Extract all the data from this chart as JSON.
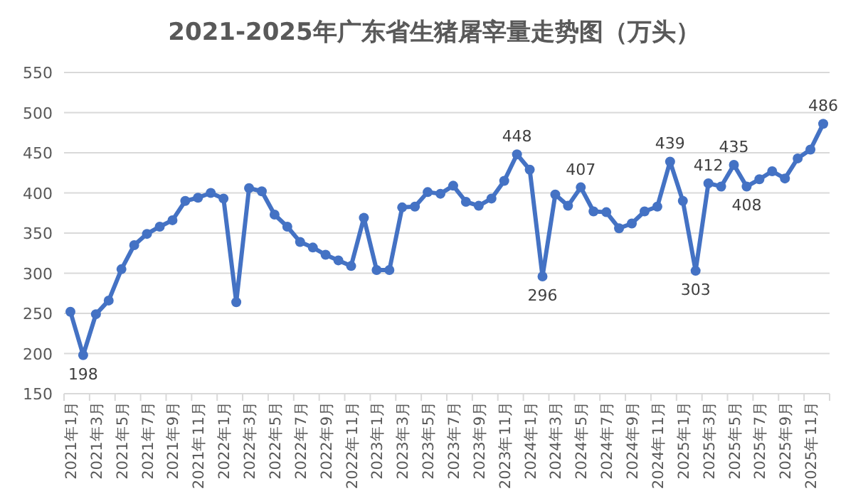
{
  "chart_data": {
    "type": "line",
    "title": "2021-2025年广东省生猪屠宰量走势图（万头）",
    "categories": [
      "2021年1月",
      null,
      "2021年3月",
      null,
      "2021年5月",
      null,
      "2021年7月",
      null,
      "2021年9月",
      null,
      "2021年11月",
      null,
      "2022年1月",
      null,
      "2022年3月",
      null,
      "2022年5月",
      null,
      "2022年7月",
      null,
      "2022年9月",
      null,
      "2022年11月",
      null,
      "2023年1月",
      null,
      "2023年3月",
      null,
      "2023年5月",
      null,
      "2023年7月",
      null,
      "2023年9月",
      null,
      "2023年11月",
      null,
      "2024年1月",
      null,
      "2024年3月",
      null,
      "2024年5月",
      null,
      "2024年7月",
      null,
      "2024年9月",
      null,
      "2024年11月",
      null,
      "2025年1月",
      null,
      "2025年3月",
      null,
      "2025年5月",
      null,
      "2025年7月",
      null,
      "2025年9月",
      null,
      "2025年11月",
      null
    ],
    "series": [
      {
        "color": "#4472c4",
        "values": [
          252,
          198,
          249,
          266,
          305,
          335,
          349,
          358,
          366,
          390,
          394,
          400,
          393,
          264,
          406,
          402,
          373,
          358,
          339,
          332,
          323,
          316,
          309,
          369,
          304,
          304,
          382,
          383,
          401,
          399,
          409,
          389,
          384,
          393,
          415,
          448,
          429,
          296,
          398,
          384,
          407,
          377,
          376,
          356,
          362,
          377,
          383,
          439,
          390,
          303,
          412,
          408,
          435,
          408,
          417,
          427,
          418,
          443,
          454,
          486
        ],
        "value_labels": [
          null,
          "198",
          null,
          null,
          null,
          null,
          null,
          null,
          null,
          null,
          null,
          null,
          null,
          null,
          null,
          null,
          null,
          null,
          null,
          null,
          null,
          null,
          null,
          null,
          null,
          null,
          null,
          null,
          null,
          null,
          null,
          null,
          null,
          null,
          null,
          "448",
          null,
          "296",
          null,
          null,
          "407",
          null,
          null,
          null,
          null,
          null,
          null,
          "439",
          null,
          "303",
          "412",
          null,
          "435",
          "408",
          null,
          null,
          null,
          null,
          null,
          "486"
        ]
      }
    ],
    "ylim": [
      150,
      550
    ],
    "yticks": [
      150,
      200,
      250,
      300,
      350,
      400,
      450,
      500,
      550
    ],
    "grid": "y",
    "marker": "circle",
    "line_style": "solid"
  }
}
